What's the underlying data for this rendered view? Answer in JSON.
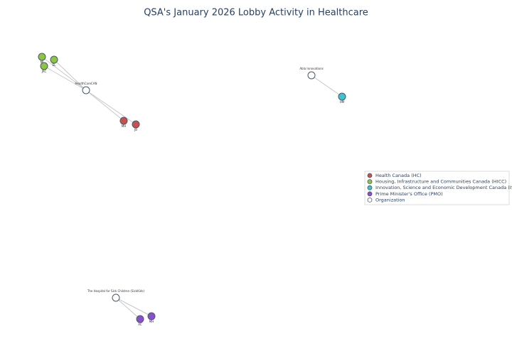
{
  "chart_data": {
    "type": "network",
    "title": "QSA's January 2026 Lobby Activity in Healthcare",
    "legend": [
      {
        "name": "Health Canada (HC)",
        "color": "#c8504e"
      },
      {
        "name": "Housing, Infrastructure and Communities Canada (HICC)",
        "color": "#8cc63f"
      },
      {
        "name": "Innovation, Science and Economic Development Canada (ISED)",
        "color": "#3ec3cc"
      },
      {
        "name": "Prime Minister's Office (PMO)",
        "color": "#8a4fcf"
      },
      {
        "name": "Organization",
        "color": "#ffffff"
      }
    ],
    "nodes": [
      {
        "label": "HealthCareCAN",
        "color": "#ffffff"
      },
      {
        "label": "MJ",
        "color": "#8cc63f"
      },
      {
        "label": "EL",
        "color": "#8cc63f"
      },
      {
        "label": "JRC",
        "color": "#8cc63f"
      },
      {
        "label": "MH",
        "color": "#c8504e"
      },
      {
        "label": "JB",
        "color": "#c8504e"
      },
      {
        "label": "Abla Innovations",
        "color": "#ffffff"
      },
      {
        "label": "HM",
        "color": "#3ec3cc"
      },
      {
        "label": "The Hospital for Sick Children (SickKids)",
        "color": "#ffffff"
      },
      {
        "label": "AC",
        "color": "#8a4fcf"
      },
      {
        "label": "MH",
        "color": "#8a4fcf"
      }
    ],
    "edges": [
      [
        0,
        1
      ],
      [
        0,
        2
      ],
      [
        0,
        3
      ],
      [
        0,
        4
      ],
      [
        0,
        5
      ],
      [
        6,
        7
      ],
      [
        8,
        9
      ],
      [
        8,
        10
      ]
    ]
  }
}
